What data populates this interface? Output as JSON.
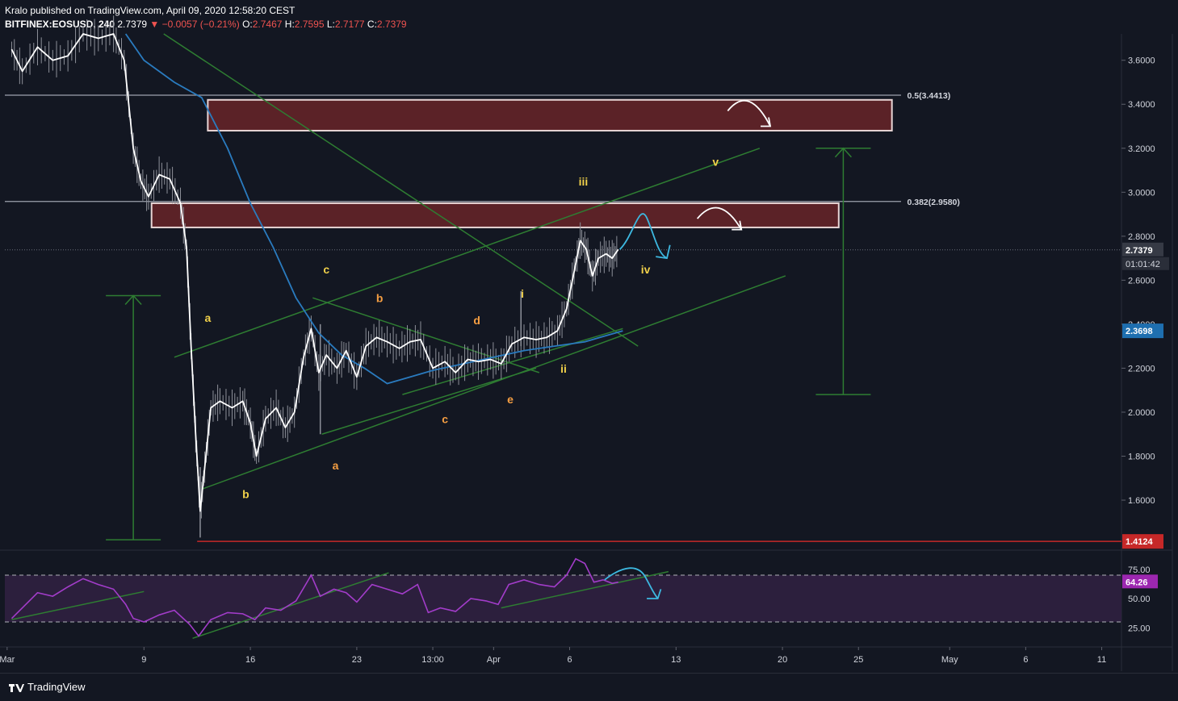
{
  "header": {
    "published": "Kralo published on TradingView.com, April 09, 2020 12:58:20 CEST",
    "symbol": "BITFINEX:EOSUSD, 240",
    "last": "2.7379",
    "change": "−0.0057 (−0.21%)",
    "o_label": "O:",
    "o": "2.7467",
    "h_label": "H:",
    "h": "2.7595",
    "l_label": "L:",
    "l": "2.7177",
    "c_label": "C:",
    "c": "2.7379",
    "colors": {
      "down": "#ef5350"
    }
  },
  "footer": {
    "brand": "TradingView"
  },
  "chart_data": {
    "type": "line",
    "instrument": "BITFINEX:EOSUSD",
    "timeframe": "240",
    "price_axis": {
      "ticks": [
        "3.6000",
        "3.4000",
        "3.2000",
        "3.0000",
        "2.8000",
        "2.6000",
        "2.4000",
        "2.2000",
        "2.0000",
        "1.8000",
        "1.6000"
      ],
      "ylim": [
        1.38,
        3.72
      ]
    },
    "time_axis": {
      "ticks": [
        {
          "t": 0,
          "label": "Mar"
        },
        {
          "t": 9,
          "label": "9"
        },
        {
          "t": 16,
          "label": "16"
        },
        {
          "t": 23,
          "label": "23"
        },
        {
          "t": 28,
          "label": "13:00"
        },
        {
          "t": 32,
          "label": "Apr"
        },
        {
          "t": 37,
          "label": "6"
        },
        {
          "t": 44,
          "label": "13"
        },
        {
          "t": 51,
          "label": "20"
        },
        {
          "t": 56,
          "label": "25"
        },
        {
          "t": 62,
          "label": "May"
        },
        {
          "t": 67,
          "label": "6"
        },
        {
          "t": 72,
          "label": "11"
        }
      ]
    },
    "price_series": [
      {
        "t": 0.3,
        "v": 3.65
      },
      {
        "t": 1,
        "v": 3.55
      },
      {
        "t": 2,
        "v": 3.66
      },
      {
        "t": 3,
        "v": 3.6
      },
      {
        "t": 4,
        "v": 3.62
      },
      {
        "t": 5,
        "v": 3.72
      },
      {
        "t": 6,
        "v": 3.7
      },
      {
        "t": 7,
        "v": 3.72
      },
      {
        "t": 7.7,
        "v": 3.6
      },
      {
        "t": 8.3,
        "v": 3.2
      },
      {
        "t": 8.8,
        "v": 3.05
      },
      {
        "t": 9.3,
        "v": 2.98
      },
      {
        "t": 10,
        "v": 3.08
      },
      {
        "t": 10.7,
        "v": 3.06
      },
      {
        "t": 11.4,
        "v": 2.95
      },
      {
        "t": 11.8,
        "v": 2.75
      },
      {
        "t": 12.1,
        "v": 2.3
      },
      {
        "t": 12.4,
        "v": 1.9
      },
      {
        "t": 12.7,
        "v": 1.55
      },
      {
        "t": 13.0,
        "v": 1.75
      },
      {
        "t": 13.4,
        "v": 2.02
      },
      {
        "t": 14,
        "v": 2.05
      },
      {
        "t": 14.8,
        "v": 2.02
      },
      {
        "t": 15.5,
        "v": 2.05
      },
      {
        "t": 16,
        "v": 1.95
      },
      {
        "t": 16.4,
        "v": 1.8
      },
      {
        "t": 17,
        "v": 1.97
      },
      {
        "t": 17.7,
        "v": 2.02
      },
      {
        "t": 18.3,
        "v": 1.93
      },
      {
        "t": 18.9,
        "v": 2.0
      },
      {
        "t": 19.5,
        "v": 2.25
      },
      {
        "t": 20,
        "v": 2.38
      },
      {
        "t": 20.5,
        "v": 2.18
      },
      {
        "t": 21,
        "v": 2.26
      },
      {
        "t": 21.7,
        "v": 2.2
      },
      {
        "t": 22.3,
        "v": 2.28
      },
      {
        "t": 23,
        "v": 2.16
      },
      {
        "t": 23.6,
        "v": 2.3
      },
      {
        "t": 24.3,
        "v": 2.34
      },
      {
        "t": 25,
        "v": 2.32
      },
      {
        "t": 25.8,
        "v": 2.29
      },
      {
        "t": 26.5,
        "v": 2.32
      },
      {
        "t": 27.2,
        "v": 2.33
      },
      {
        "t": 28,
        "v": 2.2
      },
      {
        "t": 28.8,
        "v": 2.23
      },
      {
        "t": 29.5,
        "v": 2.18
      },
      {
        "t": 30.3,
        "v": 2.24
      },
      {
        "t": 31,
        "v": 2.23
      },
      {
        "t": 31.8,
        "v": 2.24
      },
      {
        "t": 32.5,
        "v": 2.22
      },
      {
        "t": 33.2,
        "v": 2.31
      },
      {
        "t": 34,
        "v": 2.34
      },
      {
        "t": 34.8,
        "v": 2.33
      },
      {
        "t": 35.5,
        "v": 2.34
      },
      {
        "t": 36.2,
        "v": 2.37
      },
      {
        "t": 36.8,
        "v": 2.47
      },
      {
        "t": 37.3,
        "v": 2.64
      },
      {
        "t": 37.7,
        "v": 2.78
      },
      {
        "t": 38.1,
        "v": 2.74
      },
      {
        "t": 38.5,
        "v": 2.62
      },
      {
        "t": 38.9,
        "v": 2.7
      },
      {
        "t": 39.4,
        "v": 2.72
      },
      {
        "t": 39.8,
        "v": 2.7
      },
      {
        "t": 40.2,
        "v": 2.74
      }
    ],
    "ma_series": [
      {
        "t": 7.8,
        "v": 3.72
      },
      {
        "t": 9,
        "v": 3.6
      },
      {
        "t": 11,
        "v": 3.5
      },
      {
        "t": 12.8,
        "v": 3.43
      },
      {
        "t": 14.5,
        "v": 3.2
      },
      {
        "t": 16,
        "v": 2.95
      },
      {
        "t": 17.5,
        "v": 2.75
      },
      {
        "t": 19,
        "v": 2.52
      },
      {
        "t": 20.5,
        "v": 2.36
      },
      {
        "t": 22,
        "v": 2.26
      },
      {
        "t": 23.5,
        "v": 2.2
      },
      {
        "t": 25,
        "v": 2.13
      },
      {
        "t": 26.5,
        "v": 2.16
      },
      {
        "t": 28,
        "v": 2.19
      },
      {
        "t": 30,
        "v": 2.22
      },
      {
        "t": 32,
        "v": 2.25
      },
      {
        "t": 34,
        "v": 2.28
      },
      {
        "t": 36,
        "v": 2.3
      },
      {
        "t": 38,
        "v": 2.32
      },
      {
        "t": 39.5,
        "v": 2.35
      },
      {
        "t": 40.5,
        "v": 2.37
      }
    ],
    "horizontal_levels": [
      {
        "name": "fib-0.5",
        "value": 3.4413,
        "label": "0.5(3.4413)",
        "color": "#9ea3ae"
      },
      {
        "name": "fib-0.382",
        "value": 2.958,
        "label": "0.382(2.9580)",
        "color": "#9ea3ae"
      },
      {
        "name": "support-low",
        "value": 1.4124,
        "label": "1.4124",
        "color": "#c62828"
      }
    ],
    "current_price": {
      "value": 2.7379,
      "label": "2.7379",
      "countdown": "01:01:42",
      "color": "#363a45"
    },
    "ma_price": {
      "value": 2.3698,
      "label": "2.3698",
      "color": "#1e6fb0"
    },
    "zones": [
      {
        "name": "upper-resistance-zone",
        "t1": 13.2,
        "t2": 58.2,
        "v_top": 3.42,
        "v_bottom": 3.28
      },
      {
        "name": "lower-resistance-zone",
        "t1": 9.5,
        "t2": 54.7,
        "v_top": 2.95,
        "v_bottom": 2.84
      }
    ],
    "trendlines": [
      {
        "name": "channel-upper",
        "from": {
          "t": 11,
          "v": 2.25
        },
        "to": {
          "t": 49.5,
          "v": 3.2
        }
      },
      {
        "name": "channel-lower",
        "from": {
          "t": 12.8,
          "v": 1.65
        },
        "to": {
          "t": 51.2,
          "v": 2.62
        }
      },
      {
        "name": "downtrend-line",
        "from": {
          "t": 10.3,
          "v": 3.72
        },
        "to": {
          "t": 41.5,
          "v": 2.3
        }
      },
      {
        "name": "triangle-top",
        "from": {
          "t": 20.1,
          "v": 2.52
        },
        "to": {
          "t": 35,
          "v": 2.18
        }
      },
      {
        "name": "triangle-bottom",
        "from": {
          "t": 20.7,
          "v": 1.9
        },
        "to": {
          "t": 34.8,
          "v": 2.2
        }
      },
      {
        "name": "wedge-lower",
        "from": {
          "t": 26,
          "v": 2.08
        },
        "to": {
          "t": 40.5,
          "v": 2.38
        }
      }
    ],
    "measure_lines": [
      {
        "name": "measure-left",
        "t": 8.3,
        "v_top": 2.53,
        "v_bottom": 1.42
      },
      {
        "name": "measure-right",
        "t": 55,
        "v_top": 3.2,
        "v_bottom": 2.08
      }
    ],
    "wave_labels": [
      {
        "text": "c",
        "t": 21,
        "v": 2.63,
        "color": "#f0d04a"
      },
      {
        "text": "a",
        "t": 13.2,
        "v": 2.41,
        "color": "#f0d04a"
      },
      {
        "text": "b",
        "t": 15.7,
        "v": 1.61,
        "color": "#f0d04a"
      },
      {
        "text": "b",
        "t": 24.5,
        "v": 2.5,
        "color": "#f59e42"
      },
      {
        "text": "d",
        "t": 30.9,
        "v": 2.4,
        "color": "#f59e42"
      },
      {
        "text": "a",
        "t": 21.6,
        "v": 1.74,
        "color": "#f59e42"
      },
      {
        "text": "c",
        "t": 28.8,
        "v": 1.95,
        "color": "#f59e42"
      },
      {
        "text": "e",
        "t": 33.1,
        "v": 2.04,
        "color": "#f59e42"
      },
      {
        "text": "i",
        "t": 33.9,
        "v": 2.52,
        "color": "#f0d04a"
      },
      {
        "text": "ii",
        "t": 36.6,
        "v": 2.18,
        "color": "#f0d04a"
      },
      {
        "text": "iii",
        "t": 37.9,
        "v": 3.03,
        "color": "#f0d04a"
      },
      {
        "text": "iv",
        "t": 42,
        "v": 2.63,
        "color": "#f0d04a"
      },
      {
        "text": "v",
        "t": 46.6,
        "v": 3.12,
        "color": "#f0d04a"
      }
    ],
    "rsi": {
      "ticks": [
        "75.00",
        "50.00",
        "25.00"
      ],
      "ylim": [
        10,
        90
      ],
      "upper_band": 70,
      "lower_band": 30,
      "current": {
        "value": 64.26,
        "label": "64.26",
        "color": "#9c27b0"
      },
      "series": [
        {
          "t": 0.3,
          "v": 33
        },
        {
          "t": 1,
          "v": 42
        },
        {
          "t": 2,
          "v": 55
        },
        {
          "t": 3,
          "v": 52
        },
        {
          "t": 4,
          "v": 60
        },
        {
          "t": 5,
          "v": 67
        },
        {
          "t": 6,
          "v": 62
        },
        {
          "t": 7,
          "v": 58
        },
        {
          "t": 7.8,
          "v": 45
        },
        {
          "t": 8.3,
          "v": 33
        },
        {
          "t": 9,
          "v": 30
        },
        {
          "t": 10,
          "v": 36
        },
        {
          "t": 11,
          "v": 40
        },
        {
          "t": 12,
          "v": 28
        },
        {
          "t": 12.6,
          "v": 18
        },
        {
          "t": 13.4,
          "v": 32
        },
        {
          "t": 14.5,
          "v": 38
        },
        {
          "t": 15.5,
          "v": 37
        },
        {
          "t": 16.3,
          "v": 32
        },
        {
          "t": 17,
          "v": 42
        },
        {
          "t": 18,
          "v": 40
        },
        {
          "t": 19,
          "v": 48
        },
        {
          "t": 20,
          "v": 70
        },
        {
          "t": 20.6,
          "v": 52
        },
        {
          "t": 21.5,
          "v": 58
        },
        {
          "t": 22.3,
          "v": 55
        },
        {
          "t": 23,
          "v": 47
        },
        {
          "t": 24,
          "v": 62
        },
        {
          "t": 25,
          "v": 58
        },
        {
          "t": 26,
          "v": 54
        },
        {
          "t": 27,
          "v": 62
        },
        {
          "t": 27.7,
          "v": 38
        },
        {
          "t": 28.5,
          "v": 42
        },
        {
          "t": 29.5,
          "v": 39
        },
        {
          "t": 30.5,
          "v": 50
        },
        {
          "t": 31.5,
          "v": 48
        },
        {
          "t": 32.3,
          "v": 45
        },
        {
          "t": 33,
          "v": 62
        },
        {
          "t": 34,
          "v": 66
        },
        {
          "t": 35,
          "v": 62
        },
        {
          "t": 36,
          "v": 60
        },
        {
          "t": 36.8,
          "v": 70
        },
        {
          "t": 37.4,
          "v": 84
        },
        {
          "t": 38,
          "v": 80
        },
        {
          "t": 38.6,
          "v": 64
        },
        {
          "t": 39.2,
          "v": 66
        },
        {
          "t": 39.8,
          "v": 63
        },
        {
          "t": 40.2,
          "v": 64
        }
      ],
      "trendlines": [
        {
          "name": "rsi-trend-1",
          "from": {
            "t": 0.3,
            "v": 32
          },
          "to": {
            "t": 9,
            "v": 56
          }
        },
        {
          "name": "rsi-trend-2",
          "from": {
            "t": 12.2,
            "v": 16
          },
          "to": {
            "t": 25.1,
            "v": 72
          }
        },
        {
          "name": "rsi-trend-3",
          "from": {
            "t": 32.5,
            "v": 42
          },
          "to": {
            "t": 43.5,
            "v": 73
          }
        }
      ]
    },
    "projection_arrows": [
      {
        "name": "projection-cyan-price",
        "color": "#3db8e0"
      },
      {
        "name": "projection-white-upper",
        "color": "#ffffff"
      },
      {
        "name": "projection-white-lower",
        "color": "#ffffff"
      },
      {
        "name": "projection-cyan-rsi",
        "color": "#3db8e0"
      }
    ],
    "colors": {
      "background": "#131722",
      "price_line": "#ffffff",
      "ma_line": "#2a7bbf",
      "trendline": "#2e7d32",
      "zone_fill": "#5b2227",
      "zone_border": "#e8d5d5",
      "rsi_line": "#a23cc9",
      "rsi_band_fill": "#2c1f3d"
    }
  }
}
